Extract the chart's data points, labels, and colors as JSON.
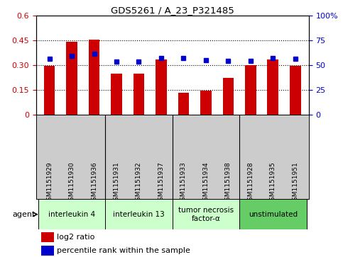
{
  "title": "GDS5261 / A_23_P321485",
  "samples": [
    "GSM1151929",
    "GSM1151930",
    "GSM1151936",
    "GSM1151931",
    "GSM1151932",
    "GSM1151937",
    "GSM1151933",
    "GSM1151934",
    "GSM1151938",
    "GSM1151928",
    "GSM1151935",
    "GSM1151951"
  ],
  "log2_ratio": [
    0.295,
    0.44,
    0.455,
    0.245,
    0.245,
    0.335,
    0.13,
    0.145,
    0.22,
    0.3,
    0.335,
    0.295
  ],
  "percentile_rank_pct": [
    56,
    59,
    61,
    53,
    53,
    57,
    57,
    55,
    54,
    54,
    57,
    56
  ],
  "bar_color": "#cc0000",
  "dot_color": "#0000cc",
  "agent_groups": [
    {
      "label": "interleukin 4",
      "start": 0,
      "end": 3,
      "color": "#ccffcc"
    },
    {
      "label": "interleukin 13",
      "start": 3,
      "end": 6,
      "color": "#ccffcc"
    },
    {
      "label": "tumor necrosis\nfactor-α",
      "start": 6,
      "end": 9,
      "color": "#ccffcc"
    },
    {
      "label": "unstimulated",
      "start": 9,
      "end": 12,
      "color": "#66cc66"
    }
  ],
  "ylim_left": [
    0,
    0.6
  ],
  "ylim_right": [
    0,
    100
  ],
  "yticks_left": [
    0,
    0.15,
    0.3,
    0.45,
    0.6
  ],
  "ytick_labels_left": [
    "0",
    "0.15",
    "0.30",
    "0.45",
    "0.6"
  ],
  "yticks_right": [
    0,
    25,
    50,
    75,
    100
  ],
  "ytick_labels_right": [
    "0",
    "25",
    "50",
    "75",
    "100%"
  ],
  "hlines": [
    0.15,
    0.3,
    0.45
  ],
  "legend_red": "log2 ratio",
  "legend_blue": "percentile rank within the sample",
  "agent_label": "agent",
  "tick_area_color": "#cccccc",
  "group_dividers": [
    3,
    6,
    9
  ],
  "bar_width": 0.5
}
